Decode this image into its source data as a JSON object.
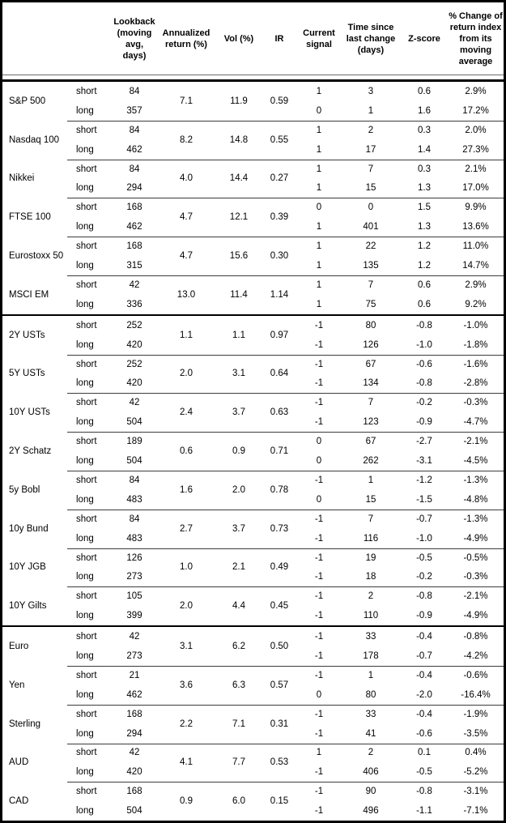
{
  "table": {
    "header": {
      "instrument": "",
      "leg": "",
      "lookback": "Lookback (moving avg, days)",
      "annualized_return": "Annualized return (%)",
      "vol": "Vol (%)",
      "ir": "IR",
      "current_signal": "Current signal",
      "time_since": "Time since last change (days)",
      "zscore": "Z-score",
      "pct_change": "% Change of return index from its moving average"
    },
    "sections": [
      [
        {
          "name": "S&P 500",
          "annualized_return": "7.1",
          "vol": "11.9",
          "ir": "0.59",
          "legs": [
            {
              "label": "short",
              "lookback": "84",
              "signal": "1",
              "days": "3",
              "zscore": "0.6",
              "pct_change": "2.9%"
            },
            {
              "label": "long",
              "lookback": "357",
              "signal": "0",
              "days": "1",
              "zscore": "1.6",
              "pct_change": "17.2%"
            }
          ]
        },
        {
          "name": "Nasdaq 100",
          "annualized_return": "8.2",
          "vol": "14.8",
          "ir": "0.55",
          "legs": [
            {
              "label": "short",
              "lookback": "84",
              "signal": "1",
              "days": "2",
              "zscore": "0.3",
              "pct_change": "2.0%"
            },
            {
              "label": "long",
              "lookback": "462",
              "signal": "1",
              "days": "17",
              "zscore": "1.4",
              "pct_change": "27.3%"
            }
          ]
        },
        {
          "name": "Nikkei",
          "annualized_return": "4.0",
          "vol": "14.4",
          "ir": "0.27",
          "legs": [
            {
              "label": "short",
              "lookback": "84",
              "signal": "1",
              "days": "7",
              "zscore": "0.3",
              "pct_change": "2.1%"
            },
            {
              "label": "long",
              "lookback": "294",
              "signal": "1",
              "days": "15",
              "zscore": "1.3",
              "pct_change": "17.0%"
            }
          ]
        },
        {
          "name": "FTSE 100",
          "annualized_return": "4.7",
          "vol": "12.1",
          "ir": "0.39",
          "legs": [
            {
              "label": "short",
              "lookback": "168",
              "signal": "0",
              "days": "0",
              "zscore": "1.5",
              "pct_change": "9.9%"
            },
            {
              "label": "long",
              "lookback": "462",
              "signal": "1",
              "days": "401",
              "zscore": "1.3",
              "pct_change": "13.6%"
            }
          ]
        },
        {
          "name": "Eurostoxx 50",
          "annualized_return": "4.7",
          "vol": "15.6",
          "ir": "0.30",
          "legs": [
            {
              "label": "short",
              "lookback": "168",
              "signal": "1",
              "days": "22",
              "zscore": "1.2",
              "pct_change": "11.0%"
            },
            {
              "label": "long",
              "lookback": "315",
              "signal": "1",
              "days": "135",
              "zscore": "1.2",
              "pct_change": "14.7%"
            }
          ]
        },
        {
          "name": "MSCI EM",
          "annualized_return": "13.0",
          "vol": "11.4",
          "ir": "1.14",
          "legs": [
            {
              "label": "short",
              "lookback": "42",
              "signal": "1",
              "days": "7",
              "zscore": "0.6",
              "pct_change": "2.9%"
            },
            {
              "label": "long",
              "lookback": "336",
              "signal": "1",
              "days": "75",
              "zscore": "0.6",
              "pct_change": "9.2%"
            }
          ]
        }
      ],
      [
        {
          "name": "2Y USTs",
          "annualized_return": "1.1",
          "vol": "1.1",
          "ir": "0.97",
          "legs": [
            {
              "label": "short",
              "lookback": "252",
              "signal": "-1",
              "days": "80",
              "zscore": "-0.8",
              "pct_change": "-1.0%"
            },
            {
              "label": "long",
              "lookback": "420",
              "signal": "-1",
              "days": "126",
              "zscore": "-1.0",
              "pct_change": "-1.8%"
            }
          ]
        },
        {
          "name": "5Y USTs",
          "annualized_return": "2.0",
          "vol": "3.1",
          "ir": "0.64",
          "legs": [
            {
              "label": "short",
              "lookback": "252",
              "signal": "-1",
              "days": "67",
              "zscore": "-0.6",
              "pct_change": "-1.6%"
            },
            {
              "label": "long",
              "lookback": "420",
              "signal": "-1",
              "days": "134",
              "zscore": "-0.8",
              "pct_change": "-2.8%"
            }
          ]
        },
        {
          "name": "10Y USTs",
          "annualized_return": "2.4",
          "vol": "3.7",
          "ir": "0.63",
          "legs": [
            {
              "label": "short",
              "lookback": "42",
              "signal": "-1",
              "days": "7",
              "zscore": "-0.2",
              "pct_change": "-0.3%"
            },
            {
              "label": "long",
              "lookback": "504",
              "signal": "-1",
              "days": "123",
              "zscore": "-0.9",
              "pct_change": "-4.7%"
            }
          ]
        },
        {
          "name": "2Y Schatz",
          "annualized_return": "0.6",
          "vol": "0.9",
          "ir": "0.71",
          "legs": [
            {
              "label": "short",
              "lookback": "189",
              "signal": "0",
              "days": "67",
              "zscore": "-2.7",
              "pct_change": "-2.1%"
            },
            {
              "label": "long",
              "lookback": "504",
              "signal": "0",
              "days": "262",
              "zscore": "-3.1",
              "pct_change": "-4.5%"
            }
          ]
        },
        {
          "name": "5y Bobl",
          "annualized_return": "1.6",
          "vol": "2.0",
          "ir": "0.78",
          "legs": [
            {
              "label": "short",
              "lookback": "84",
              "signal": "-1",
              "days": "1",
              "zscore": "-1.2",
              "pct_change": "-1.3%"
            },
            {
              "label": "long",
              "lookback": "483",
              "signal": "0",
              "days": "15",
              "zscore": "-1.5",
              "pct_change": "-4.8%"
            }
          ]
        },
        {
          "name": "10y Bund",
          "annualized_return": "2.7",
          "vol": "3.7",
          "ir": "0.73",
          "legs": [
            {
              "label": "short",
              "lookback": "84",
              "signal": "-1",
              "days": "7",
              "zscore": "-0.7",
              "pct_change": "-1.3%"
            },
            {
              "label": "long",
              "lookback": "483",
              "signal": "-1",
              "days": "116",
              "zscore": "-1.0",
              "pct_change": "-4.9%"
            }
          ]
        },
        {
          "name": "10Y JGB",
          "annualized_return": "1.0",
          "vol": "2.1",
          "ir": "0.49",
          "legs": [
            {
              "label": "short",
              "lookback": "126",
              "signal": "-1",
              "days": "19",
              "zscore": "-0.5",
              "pct_change": "-0.5%"
            },
            {
              "label": "long",
              "lookback": "273",
              "signal": "-1",
              "days": "18",
              "zscore": "-0.2",
              "pct_change": "-0.3%"
            }
          ]
        },
        {
          "name": "10Y Gilts",
          "annualized_return": "2.0",
          "vol": "4.4",
          "ir": "0.45",
          "legs": [
            {
              "label": "short",
              "lookback": "105",
              "signal": "-1",
              "days": "2",
              "zscore": "-0.8",
              "pct_change": "-2.1%"
            },
            {
              "label": "long",
              "lookback": "399",
              "signal": "-1",
              "days": "110",
              "zscore": "-0.9",
              "pct_change": "-4.9%"
            }
          ]
        }
      ],
      [
        {
          "name": "Euro",
          "annualized_return": "3.1",
          "vol": "6.2",
          "ir": "0.50",
          "legs": [
            {
              "label": "short",
              "lookback": "42",
              "signal": "-1",
              "days": "33",
              "zscore": "-0.4",
              "pct_change": "-0.8%"
            },
            {
              "label": "long",
              "lookback": "273",
              "signal": "-1",
              "days": "178",
              "zscore": "-0.7",
              "pct_change": "-4.2%"
            }
          ]
        },
        {
          "name": "Yen",
          "annualized_return": "3.6",
          "vol": "6.3",
          "ir": "0.57",
          "legs": [
            {
              "label": "short",
              "lookback": "21",
              "signal": "-1",
              "days": "1",
              "zscore": "-0.4",
              "pct_change": "-0.6%"
            },
            {
              "label": "long",
              "lookback": "462",
              "signal": "0",
              "days": "80",
              "zscore": "-2.0",
              "pct_change": "-16.4%"
            }
          ]
        },
        {
          "name": "Sterling",
          "annualized_return": "2.2",
          "vol": "7.1",
          "ir": "0.31",
          "legs": [
            {
              "label": "short",
              "lookback": "168",
              "signal": "-1",
              "days": "33",
              "zscore": "-0.4",
              "pct_change": "-1.9%"
            },
            {
              "label": "long",
              "lookback": "294",
              "signal": "-1",
              "days": "41",
              "zscore": "-0.6",
              "pct_change": "-3.5%"
            }
          ]
        },
        {
          "name": "AUD",
          "annualized_return": "4.1",
          "vol": "7.7",
          "ir": "0.53",
          "legs": [
            {
              "label": "short",
              "lookback": "42",
              "signal": "1",
              "days": "2",
              "zscore": "0.1",
              "pct_change": "0.4%"
            },
            {
              "label": "long",
              "lookback": "420",
              "signal": "-1",
              "days": "406",
              "zscore": "-0.5",
              "pct_change": "-5.2%"
            }
          ]
        },
        {
          "name": "CAD",
          "annualized_return": "0.9",
          "vol": "6.0",
          "ir": "0.15",
          "legs": [
            {
              "label": "short",
              "lookback": "168",
              "signal": "-1",
              "days": "90",
              "zscore": "-0.8",
              "pct_change": "-3.1%"
            },
            {
              "label": "long",
              "lookback": "504",
              "signal": "-1",
              "days": "496",
              "zscore": "-1.1",
              "pct_change": "-7.1%"
            }
          ]
        }
      ]
    ]
  }
}
